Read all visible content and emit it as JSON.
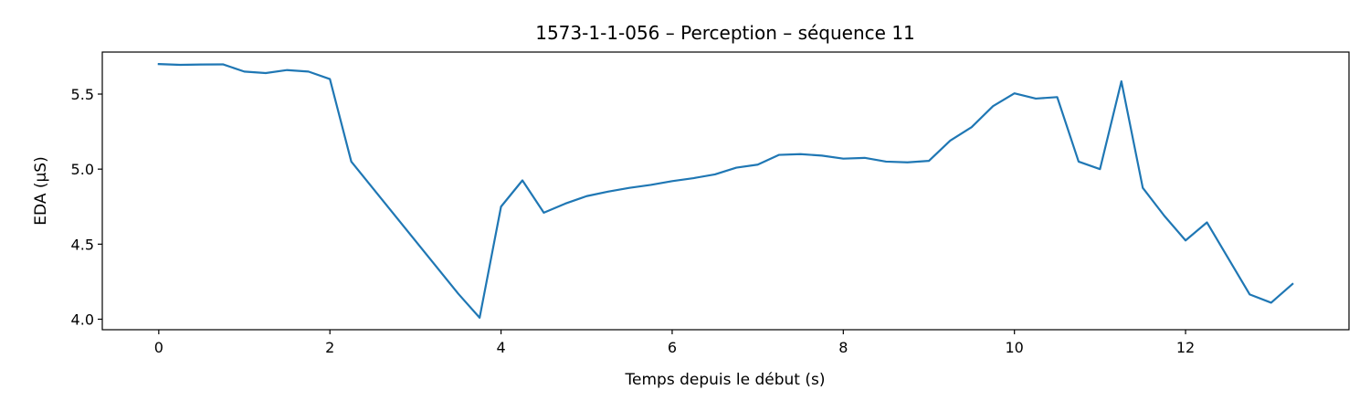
{
  "chart_data": {
    "type": "line",
    "title": "1573-1-1-056 – Perception – séquence 11",
    "xlabel": "Temps depuis le début (s)",
    "ylabel": "EDA (µS)",
    "xlim": [
      -0.66,
      13.91
    ],
    "ylim": [
      3.93,
      5.78
    ],
    "xticks": [
      0,
      2,
      4,
      6,
      8,
      10,
      12
    ],
    "yticks": [
      4.0,
      4.5,
      5.0,
      5.5
    ],
    "grid": false,
    "series": [
      {
        "color": "#1f77b4",
        "x": [
          0,
          0.25,
          0.5,
          0.75,
          1.0,
          1.25,
          1.5,
          1.75,
          2.0,
          2.25,
          3.5,
          3.75,
          4.0,
          4.25,
          4.5,
          4.75,
          5.0,
          5.25,
          5.5,
          5.75,
          6.0,
          6.25,
          6.5,
          6.75,
          7.0,
          7.25,
          7.5,
          7.75,
          8.0,
          8.25,
          8.5,
          8.75,
          9.0,
          9.25,
          9.5,
          9.75,
          10.0,
          10.25,
          10.5,
          10.75,
          11.0,
          11.25,
          11.5,
          11.75,
          12.0,
          12.25,
          12.75,
          13.0,
          13.25
        ],
        "y": [
          5.7,
          5.695,
          5.697,
          5.698,
          5.65,
          5.64,
          5.66,
          5.65,
          5.6,
          5.05,
          4.17,
          4.01,
          4.75,
          4.925,
          4.71,
          4.77,
          4.82,
          4.85,
          4.875,
          4.895,
          4.92,
          4.94,
          4.965,
          5.01,
          5.03,
          5.095,
          5.1,
          5.09,
          5.07,
          5.075,
          5.05,
          5.045,
          5.055,
          5.19,
          5.28,
          5.42,
          5.505,
          5.47,
          5.48,
          5.05,
          5.0,
          5.585,
          4.875,
          4.69,
          4.525,
          4.645,
          4.165,
          4.11,
          4.235
        ]
      }
    ]
  }
}
